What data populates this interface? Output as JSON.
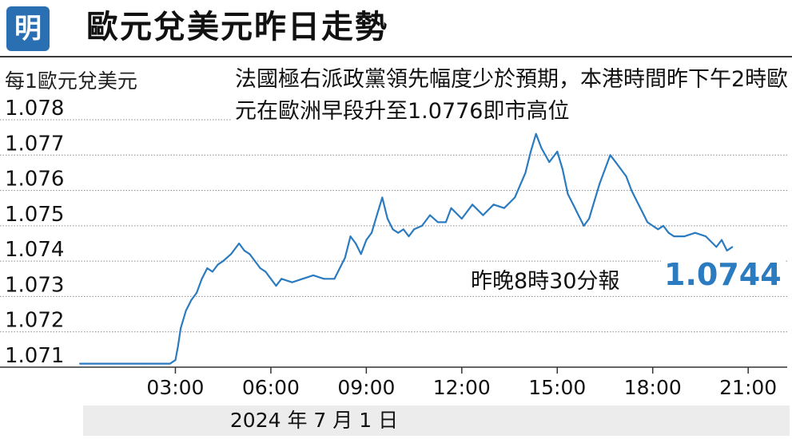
{
  "header": {
    "logo_text": "明",
    "title": "歐元兌美元昨日走勢"
  },
  "unit_label": "每1歐元兌美元",
  "annotation": "法國極右派政黨領先幅度少於預期，本港時間昨下午2時歐元在歐洲早段升至1.0776即市高位",
  "latest": {
    "label": "昨晚8時30分報",
    "value": "1.0744"
  },
  "date_label": "2024 年 7 月 1 日",
  "colors": {
    "line": "#2b7bc0",
    "latest_value": "#2b7bc0",
    "logo": "#2b6fb3"
  },
  "chart_data": {
    "type": "line",
    "title": "歐元兌美元昨日走勢",
    "ylabel": "每1歐元兌美元",
    "xlabel": "",
    "ylim": [
      1.071,
      1.078
    ],
    "yticks": [
      "1.078",
      "1.077",
      "1.076",
      "1.075",
      "1.074",
      "1.073",
      "1.072",
      "1.071"
    ],
    "xlim": [
      "00:00",
      "22:00"
    ],
    "xticks": [
      "03:00",
      "06:00",
      "09:00",
      "12:00",
      "15:00",
      "18:00",
      "21:00"
    ],
    "grid": "horizontal dotted",
    "series": [
      {
        "x": [
          "00:00",
          "01:00",
          "02:00",
          "02:50",
          "03:00",
          "03:05",
          "03:10",
          "03:20",
          "03:30",
          "03:40",
          "03:50",
          "04:00",
          "04:10",
          "04:20",
          "04:30",
          "04:45",
          "05:00",
          "05:10",
          "05:20",
          "05:30",
          "05:40",
          "05:50",
          "06:00",
          "06:10",
          "06:20",
          "06:40",
          "07:00",
          "07:20",
          "07:40",
          "08:00",
          "08:20",
          "08:30",
          "08:40",
          "08:50",
          "09:00",
          "09:10",
          "09:20",
          "09:30",
          "09:40",
          "09:50",
          "10:00",
          "10:10",
          "10:20",
          "10:30",
          "10:45",
          "11:00",
          "11:15",
          "11:30",
          "11:40",
          "12:00",
          "12:20",
          "12:40",
          "13:00",
          "13:20",
          "13:40",
          "14:00",
          "14:10",
          "14:20",
          "14:30",
          "14:45",
          "15:00",
          "15:10",
          "15:20",
          "15:30",
          "15:40",
          "15:50",
          "16:00",
          "16:10",
          "16:20",
          "16:30",
          "16:40",
          "16:50",
          "17:00",
          "17:10",
          "17:20",
          "17:30",
          "17:40",
          "17:50",
          "18:00",
          "18:10",
          "18:20",
          "18:30",
          "18:40",
          "19:00",
          "19:20",
          "19:40",
          "20:00",
          "20:10",
          "20:20",
          "20:30"
        ],
        "y": [
          1.0711,
          1.0711,
          1.0711,
          1.0711,
          1.0712,
          1.0716,
          1.0721,
          1.0726,
          1.0729,
          1.0731,
          1.0735,
          1.0738,
          1.0737,
          1.0739,
          1.074,
          1.0742,
          1.0745,
          1.0743,
          1.0742,
          1.074,
          1.0738,
          1.0737,
          1.0735,
          1.0733,
          1.0735,
          1.0734,
          1.0735,
          1.0736,
          1.0735,
          1.0735,
          1.0741,
          1.0747,
          1.0745,
          1.0742,
          1.0746,
          1.0748,
          1.0753,
          1.0758,
          1.0752,
          1.0749,
          1.0748,
          1.0749,
          1.0747,
          1.0749,
          1.075,
          1.0753,
          1.0751,
          1.0751,
          1.0755,
          1.0752,
          1.0756,
          1.0753,
          1.0756,
          1.0755,
          1.0758,
          1.0765,
          1.0771,
          1.0776,
          1.0772,
          1.0768,
          1.0771,
          1.0766,
          1.0759,
          1.0756,
          1.0753,
          1.075,
          1.0752,
          1.0757,
          1.0762,
          1.0766,
          1.077,
          1.0768,
          1.0766,
          1.0764,
          1.076,
          1.0757,
          1.0754,
          1.0751,
          1.075,
          1.0749,
          1.075,
          1.0748,
          1.0747,
          1.0747,
          1.0748,
          1.0747,
          1.0744,
          1.0746,
          1.0743,
          1.0744
        ]
      }
    ]
  }
}
